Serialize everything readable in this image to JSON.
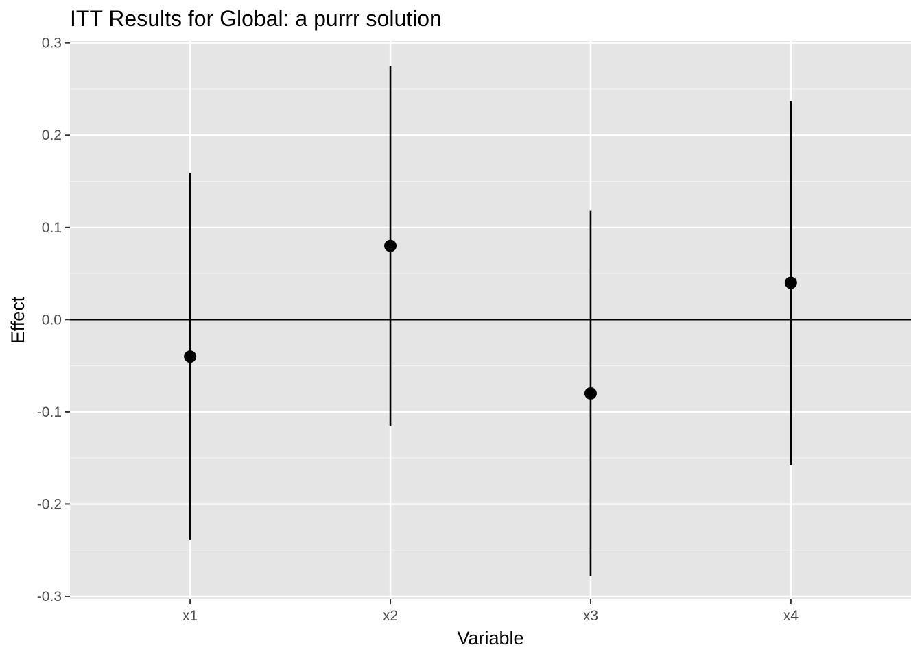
{
  "chart_data": {
    "type": "scatter",
    "title": "ITT Results for Global: a purrr solution",
    "xlabel": "Variable",
    "ylabel": "Effect",
    "categories": [
      "x1",
      "x2",
      "x3",
      "x4"
    ],
    "y_ticks": [
      "0.3",
      "0.2",
      "0.1",
      "0.0",
      "-0.1",
      "-0.2",
      "-0.3"
    ],
    "y_tick_values": [
      0.3,
      0.2,
      0.1,
      0.0,
      -0.1,
      -0.2,
      -0.3
    ],
    "ylim": [
      -0.303,
      0.302
    ],
    "reference_line": 0.0,
    "series": [
      {
        "estimates": [
          -0.04,
          0.08,
          -0.08,
          0.04
        ],
        "lower": [
          -0.239,
          -0.115,
          -0.278,
          -0.158
        ],
        "upper": [
          0.159,
          0.275,
          0.118,
          0.237
        ]
      }
    ],
    "grid": true,
    "legend": "none",
    "colors": {
      "panel_background": "#e5e5e5",
      "grid_major": "#ffffff",
      "grid_minor": "#f2f2f2",
      "marks": "#000000"
    }
  }
}
